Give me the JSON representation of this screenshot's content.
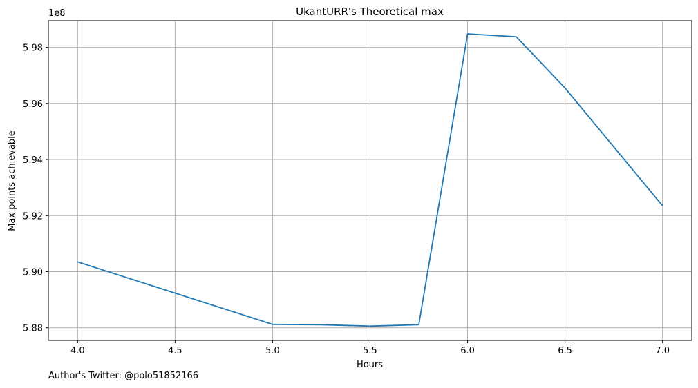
{
  "chart_data": {
    "type": "line",
    "title": "UkantURR's Theoretical max",
    "xlabel": "Hours",
    "ylabel": "Max points achievable",
    "y_offset_text": "1e8",
    "xlim": [
      3.85,
      7.15
    ],
    "ylim": [
      5.8755,
      5.9895
    ],
    "grid": true,
    "x_ticks": [
      4.0,
      4.5,
      5.0,
      5.5,
      6.0,
      6.5,
      7.0
    ],
    "x_tick_labels": [
      "4.0",
      "4.5",
      "5.0",
      "5.5",
      "6.0",
      "6.5",
      "7.0"
    ],
    "y_ticks": [
      5.88,
      5.9,
      5.92,
      5.94,
      5.96,
      5.98
    ],
    "y_tick_labels": [
      "5.88",
      "5.90",
      "5.92",
      "5.94",
      "5.96",
      "5.98"
    ],
    "series": [
      {
        "color": "#1f77b4",
        "x": [
          4.0,
          5.0,
          5.25,
          5.5,
          5.75,
          6.0,
          6.25,
          6.5,
          7.0
        ],
        "y": [
          5.9035,
          5.8812,
          5.8811,
          5.8806,
          5.8811,
          5.9848,
          5.9838,
          5.9655,
          5.9235
        ]
      }
    ]
  },
  "footer": {
    "caption": "Author's Twitter: @polo51852166"
  }
}
